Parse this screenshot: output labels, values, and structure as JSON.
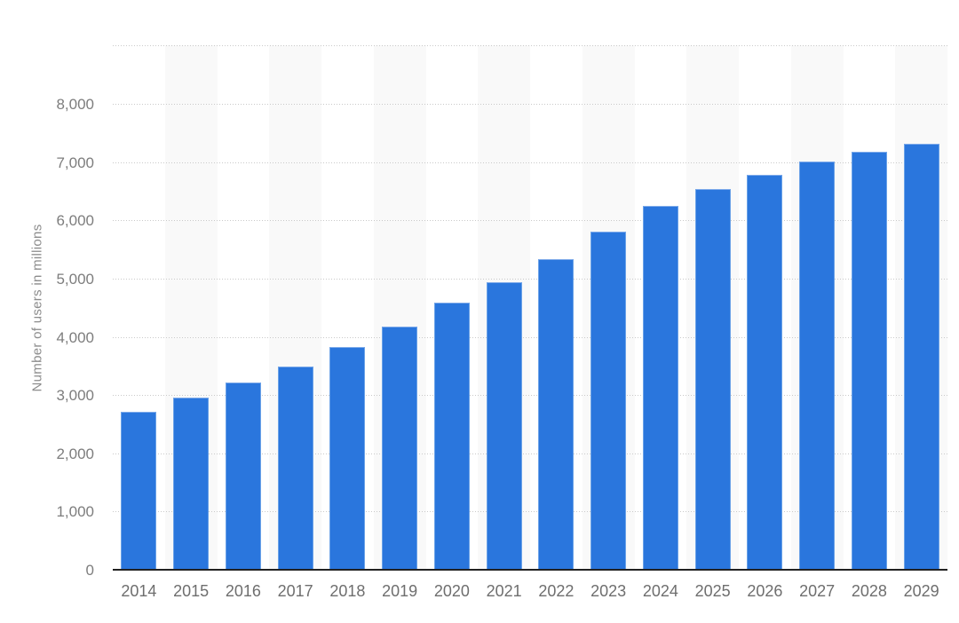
{
  "chart_data": {
    "type": "bar",
    "title": "",
    "xlabel": "",
    "ylabel": "Number of users in millions",
    "categories": [
      "2014",
      "2015",
      "2016",
      "2017",
      "2018",
      "2019",
      "2020",
      "2021",
      "2022",
      "2023",
      "2024",
      "2025",
      "2026",
      "2027",
      "2028",
      "2029"
    ],
    "series": [
      {
        "name": "Number of users in millions",
        "values": [
          2710,
          2950,
          3220,
          3495,
          3825,
          4180,
          4580,
          4940,
          5330,
          5810,
          6250,
          6530,
          6780,
          7010,
          7180,
          7310
        ]
      }
    ],
    "ylim": [
      0,
      9000
    ],
    "ytick_step": 1000,
    "yticks": [
      0,
      1000,
      2000,
      3000,
      4000,
      5000,
      6000,
      7000,
      8000
    ],
    "ytick_labels": [
      "0",
      "1,000",
      "2,000",
      "3,000",
      "4,000",
      "5,000",
      "6,000",
      "7,000",
      "8,000"
    ],
    "grid": "horizontal-dotted",
    "legend": "none",
    "plot_background": "alternating-column-bands",
    "colors": {
      "bar_fill": "#2a76dd",
      "bar_edge": "#7fabea",
      "band": "#f9f9f9",
      "gridline": "#c9c9c9",
      "axis_line": "#212121",
      "y_tick_text": "#7d7d7d",
      "x_tick_text": "#6e6e6e",
      "axis_title_text": "#8c8c8c",
      "background": "#ffffff"
    }
  }
}
